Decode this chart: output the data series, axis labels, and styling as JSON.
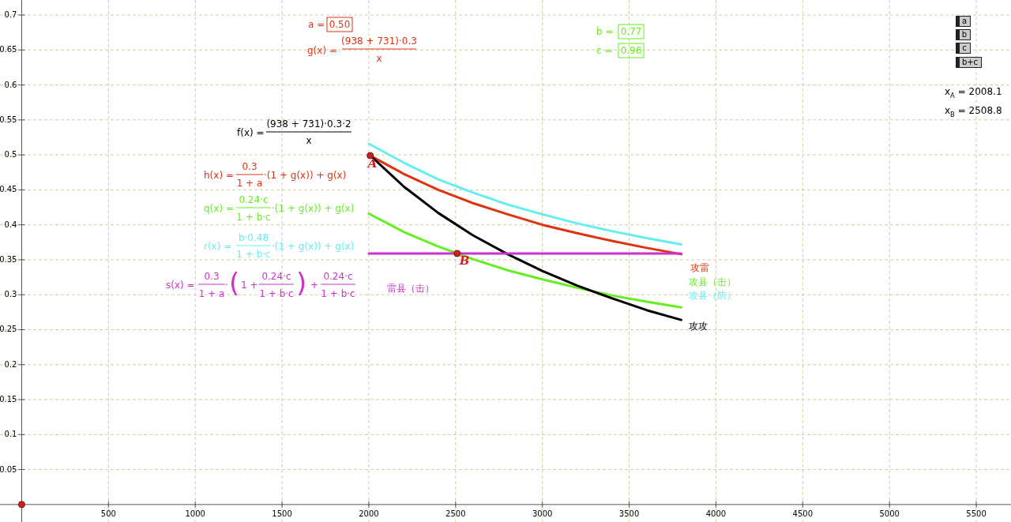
{
  "chart_data": {
    "type": "line",
    "xlim": [
      -125,
      5700
    ],
    "ylim": [
      -0.025,
      0.7215
    ],
    "xticks": [
      500,
      1000,
      1500,
      2000,
      2500,
      3000,
      3500,
      4000,
      4500,
      5000,
      5500
    ],
    "yticks": [
      0.05,
      0.1,
      0.15,
      0.2,
      0.25,
      0.3,
      0.35,
      0.4,
      0.45,
      0.5,
      0.55,
      0.6,
      0.65,
      0.7
    ],
    "grid": true,
    "series": [
      {
        "name": "攻雷",
        "color": "#dd3311",
        "x": [
          2000,
          2200,
          2400,
          2600,
          2800,
          3000,
          3200,
          3400,
          3600,
          3800
        ],
        "values": [
          0.5,
          0.473,
          0.45,
          0.431,
          0.415,
          0.4,
          0.388,
          0.377,
          0.367,
          0.358
        ]
      },
      {
        "name": "攻县（击）",
        "color": "#66ee22",
        "x": [
          2000,
          2200,
          2400,
          2600,
          2800,
          3000,
          3200,
          3400,
          3600,
          3800
        ],
        "values": [
          0.416,
          0.39,
          0.369,
          0.351,
          0.335,
          0.322,
          0.31,
          0.299,
          0.29,
          0.282
        ]
      },
      {
        "name": "攻县（防）",
        "color": "#66eeee",
        "x": [
          2000,
          2200,
          2400,
          2600,
          2800,
          3000,
          3200,
          3400,
          3600,
          3800
        ],
        "values": [
          0.516,
          0.489,
          0.465,
          0.446,
          0.429,
          0.415,
          0.402,
          0.391,
          0.381,
          0.372
        ]
      },
      {
        "name": "攻攻",
        "color": "#000000",
        "x": [
          2000,
          2200,
          2400,
          2600,
          2800,
          3000,
          3200,
          3400,
          3600,
          3800
        ],
        "values": [
          0.501,
          0.455,
          0.417,
          0.385,
          0.358,
          0.334,
          0.313,
          0.295,
          0.278,
          0.264
        ]
      },
      {
        "name": "雷县（击）",
        "color": "#cc33cc",
        "x": [
          2000,
          3800
        ],
        "values": [
          0.359,
          0.359
        ]
      },
      {
        "name": "A",
        "type": "scatter",
        "marker": "circle",
        "color": "#cc2222",
        "x": [
          2008.1
        ],
        "values": [
          0.499
        ]
      },
      {
        "name": "B",
        "type": "scatter",
        "marker": "circle",
        "color": "#cc2222",
        "x": [
          2508.8
        ],
        "values": [
          0.359
        ]
      },
      {
        "type": "scatter",
        "marker": "circle",
        "color": "#cc2222",
        "x": [
          0
        ],
        "values": [
          0
        ]
      }
    ],
    "annotations": [
      "a =",
      "0.50",
      "g(x) =",
      "(938 + 731)·0.3",
      "x",
      "b =",
      "0.77",
      "c =",
      "0.96",
      "a",
      "b",
      "c",
      "b+c",
      "x$_{A}$ = 2008.1",
      "x$_{B}$ = 2508.8",
      "f(x) =",
      "(938 + 731)·0.3·2",
      "x",
      "h(x) =",
      "0.3",
      "1 + a",
      "·(1 + g(x)) + g(x)",
      "q(x) =",
      "0.24·c",
      "1 + b·c",
      "·(1 + g(x)) + g(x)",
      "r(x) =",
      "b·0.48",
      "1 + b·c",
      "·(1 + g(x)) + g(x)",
      "s(x) =",
      "0.3",
      "1 + a",
      "·",
      "(",
      "1 +",
      "0.24·c",
      "1 + b·c",
      ")",
      "+",
      "0.24·c",
      "1 + b·c"
    ]
  }
}
